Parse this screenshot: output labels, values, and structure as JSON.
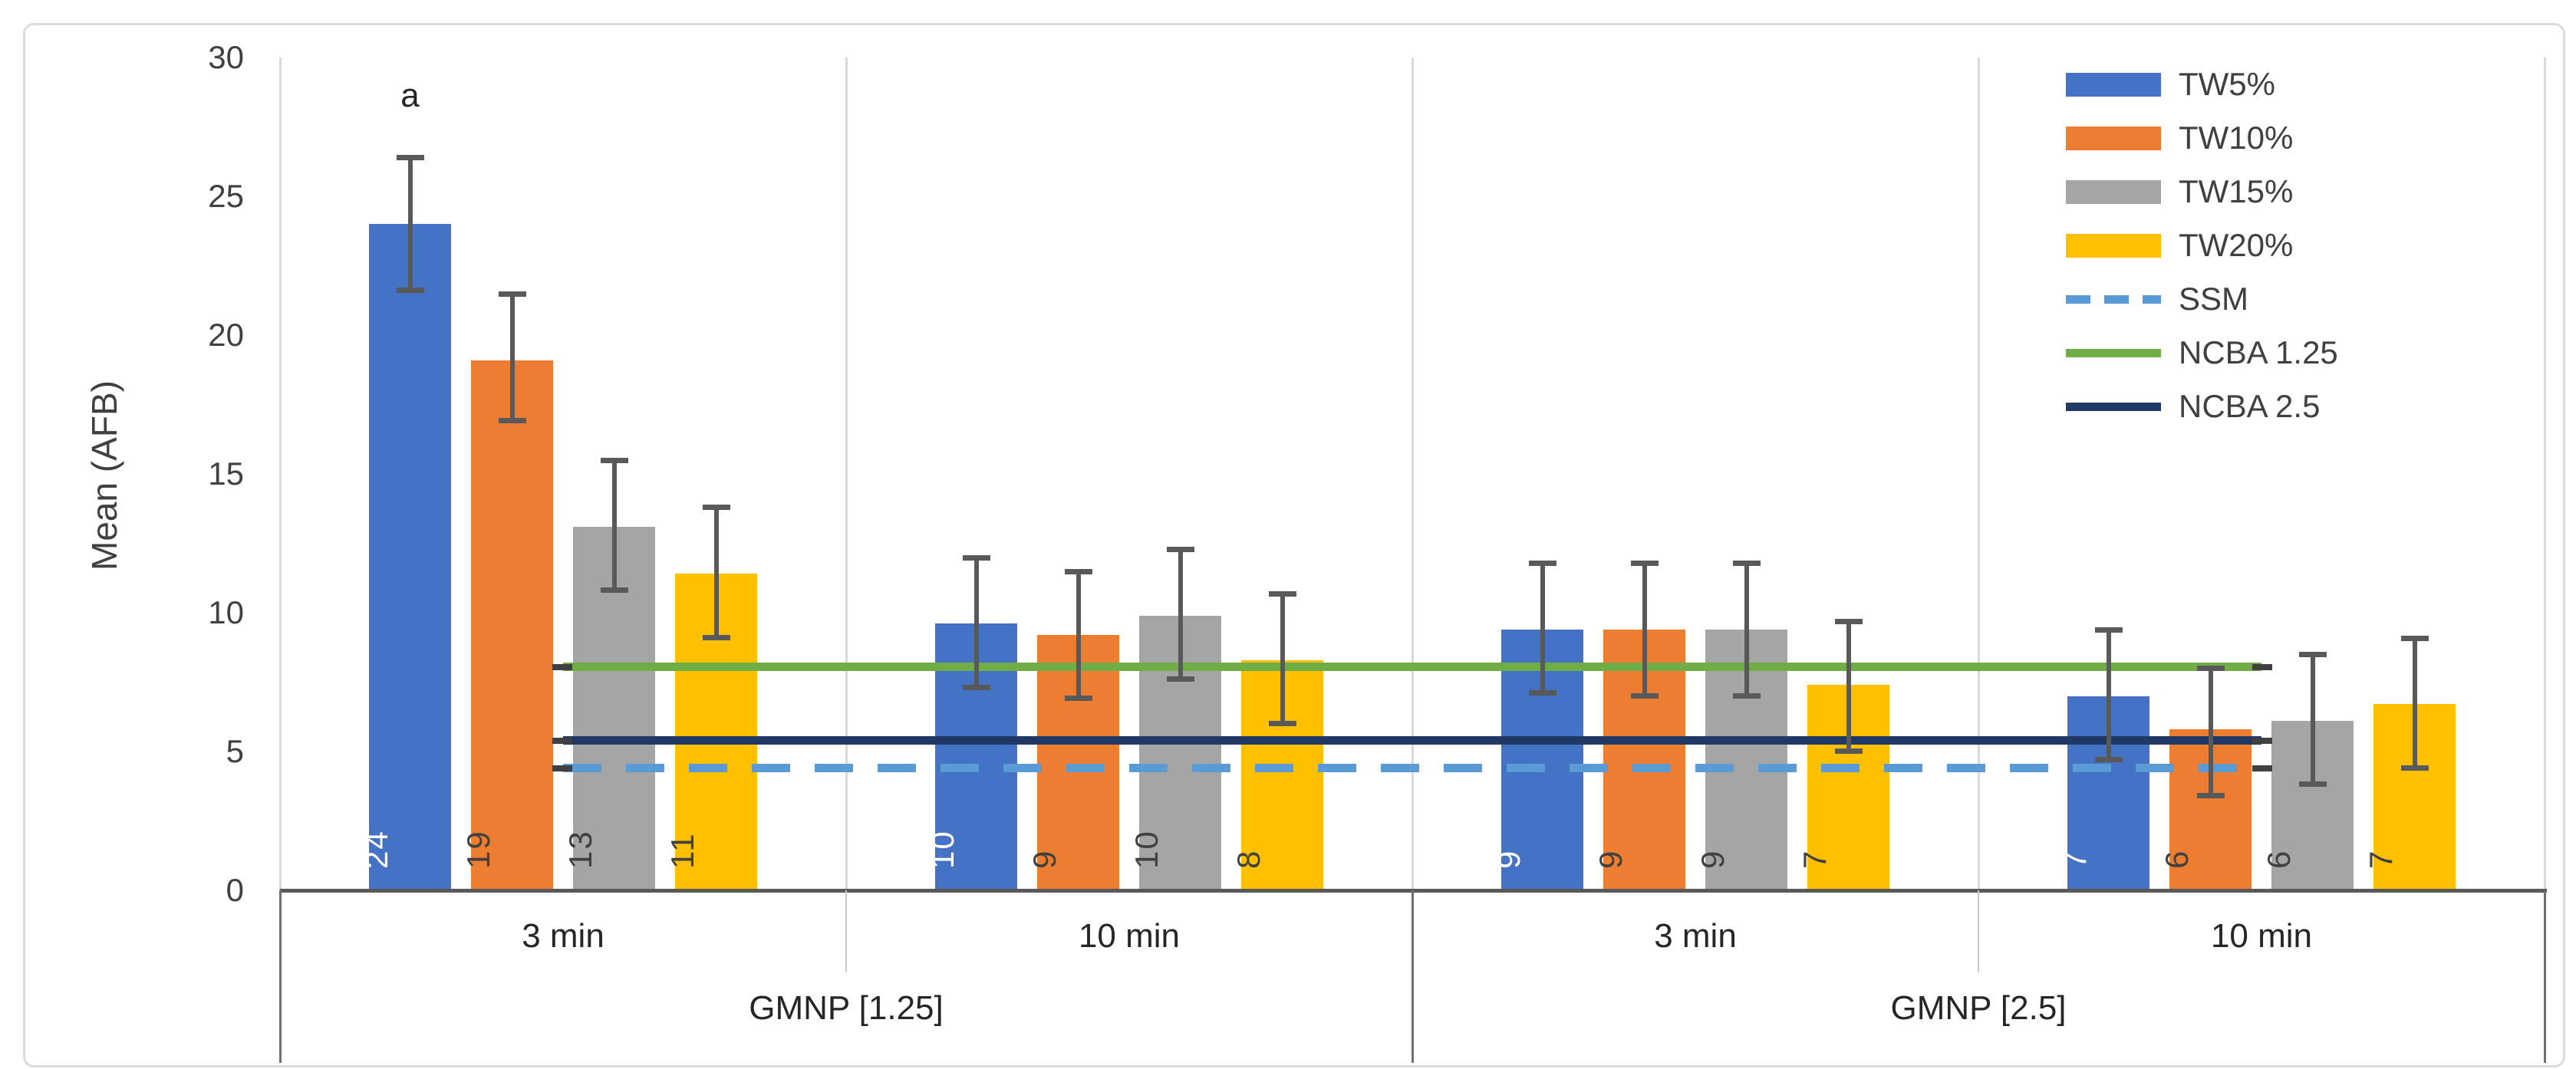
{
  "chart_data": {
    "type": "bar",
    "title": "",
    "xlabel": "",
    "ylabel": "Mean (AFB)",
    "ylim": [
      0,
      30
    ],
    "yticks": [
      0,
      5,
      10,
      15,
      20,
      25,
      30
    ],
    "grid": "vertical category separators only",
    "legend_position": "top-right",
    "group_labels_level1": [
      "3 min",
      "10 min",
      "3 min",
      "10 min"
    ],
    "group_labels_level2": [
      "GMNP [1.25]",
      "GMNP [2.5]"
    ],
    "series": [
      {
        "name": "TW5%",
        "color": "#4472C4",
        "label_color": "#FFFFFF",
        "values": [
          24.0,
          9.6,
          9.4,
          7.0
        ],
        "labels": [
          "24",
          "10",
          "9",
          "7"
        ],
        "err_low": [
          21.6,
          7.3,
          7.1,
          4.7
        ],
        "err_high": [
          26.4,
          12.0,
          11.8,
          9.4
        ]
      },
      {
        "name": "TW10%",
        "color": "#ED7D31",
        "label_color": "#404040",
        "values": [
          19.1,
          9.2,
          9.4,
          5.8
        ],
        "labels": [
          "19",
          "9",
          "9",
          "6"
        ],
        "err_low": [
          16.9,
          6.9,
          7.0,
          3.4
        ],
        "err_high": [
          21.5,
          11.5,
          11.8,
          8.0
        ]
      },
      {
        "name": "TW15%",
        "color": "#A5A5A5",
        "label_color": "#404040",
        "values": [
          13.1,
          9.9,
          9.4,
          6.1
        ],
        "labels": [
          "13",
          "10",
          "9",
          "6"
        ],
        "err_low": [
          10.8,
          7.6,
          7.0,
          3.8
        ],
        "err_high": [
          15.5,
          12.3,
          11.8,
          8.5
        ]
      },
      {
        "name": "TW20%",
        "color": "#FFC000",
        "label_color": "#404040",
        "values": [
          11.4,
          8.3,
          7.4,
          6.7
        ],
        "labels": [
          "11",
          "8",
          "7",
          "7"
        ],
        "err_low": [
          9.1,
          6.0,
          5.0,
          4.4
        ],
        "err_high": [
          13.8,
          10.7,
          9.7,
          9.1
        ]
      }
    ],
    "lines": [
      {
        "name": "NCBA 1.25",
        "value": 8.05,
        "color": "#70AD47",
        "style": "solid"
      },
      {
        "name": "NCBA 2.5",
        "value": 5.4,
        "color": "#1F3864",
        "style": "solid"
      },
      {
        "name": "SSM",
        "value": 4.4,
        "color": "#5B9BD5",
        "style": "dashed"
      }
    ],
    "legend_order": [
      "TW5%",
      "TW10%",
      "TW15%",
      "TW20%",
      "SSM",
      "NCBA 1.25",
      "NCBA 2.5"
    ],
    "annotation": {
      "text": "a",
      "group_index": 0,
      "series_index": 0
    }
  }
}
